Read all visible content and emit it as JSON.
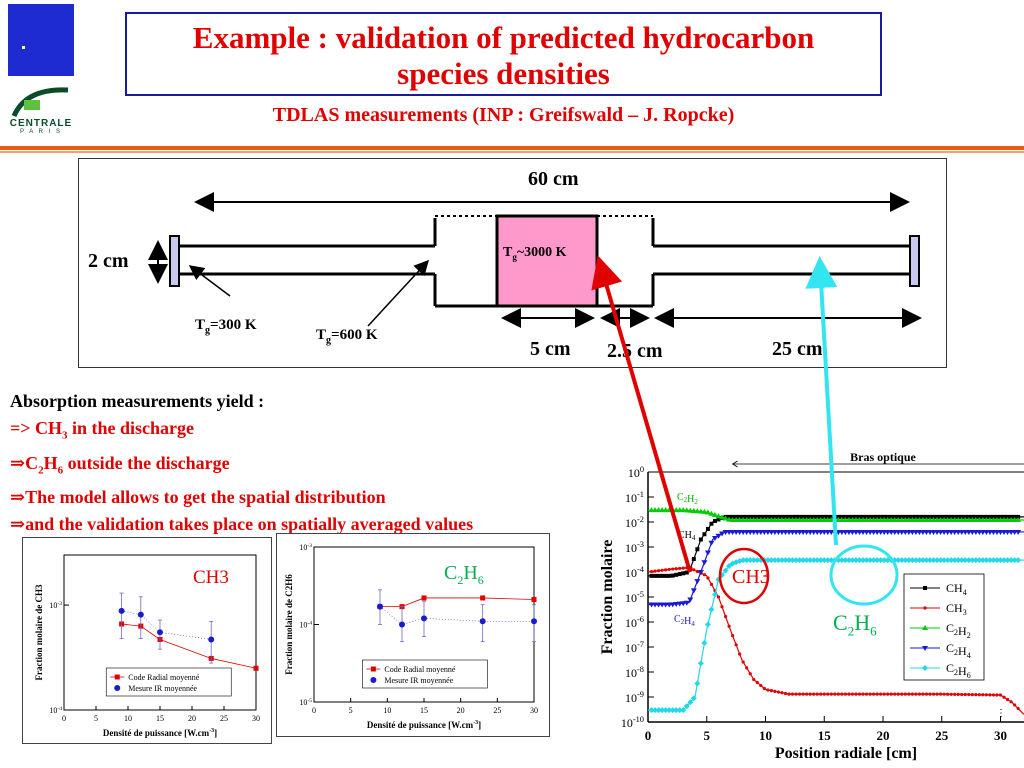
{
  "logo": {
    "text": "CENTRALE",
    "subtext": "P A R I S"
  },
  "title": {
    "line1": "Example : validation of predicted hydrocarbon",
    "line2": "species densities"
  },
  "subtitle": "TDLAS measurements (INP : Greifswald – J. Ropcke)",
  "reactor": {
    "total_length": "60 cm",
    "height": "2 cm",
    "discharge_label_pre": "T",
    "discharge_label_sub": "g",
    "discharge_label_post": "~3000 K",
    "tg300_pre": "T",
    "tg300_sub": "g",
    "tg300_post": "=300 K",
    "tg600_pre": "T",
    "tg600_sub": "g",
    "tg600_post": "=600 K",
    "dim_5": "5 cm",
    "dim_25a": "2.5 cm",
    "dim_25b": "25 cm",
    "colors": {
      "discharge": "#ff99cc",
      "window": "#c8c8f0",
      "red_arrow": "#e00000",
      "cyan_arrow": "#33e5f0"
    }
  },
  "absorption": {
    "heading": "Absorption measurements yield :",
    "l1_pre": "=> CH",
    "l1_sub": "3",
    "l1_post": " in the discharge",
    "l2_pre": "⇒C",
    "l2_sub1": "2",
    "l2_mid": "H",
    "l2_sub2": "6",
    "l2_post": " outside the discharge",
    "l3": "⇒The model allows to get the spatial distribution",
    "l4": "⇒and the validation takes place on spatially averaged values"
  },
  "chart_data": [
    {
      "type": "scatter",
      "title": "CH3",
      "xlabel": "Densité de puissance [W.cm-3]",
      "ylabel": "Fraction molaire de CH3",
      "xlim": [
        0,
        30
      ],
      "ylim": [
        0.0001,
        0.003
      ],
      "xticks": [
        "0",
        "5",
        "10",
        "15",
        "20",
        "25",
        "30"
      ],
      "yticks": [
        "10-4",
        "10-3"
      ],
      "log_y": true,
      "legend": "bottom-center",
      "series": [
        {
          "name": "Code Radial moyenné",
          "color": "#e00000",
          "marker": "square",
          "x": [
            9,
            12,
            15,
            23,
            30
          ],
          "y": [
            0.00066,
            0.00063,
            0.00047,
            0.00031,
            0.00025
          ]
        },
        {
          "name": "Mesure IR moyennée",
          "color": "#1a1ad0",
          "marker": "circle",
          "x": [
            9,
            12,
            15,
            23
          ],
          "y": [
            0.00088,
            0.00081,
            0.00055,
            0.00047
          ],
          "err_low": [
            0.00048,
            0.00048,
            0.00038,
            0.00028
          ],
          "err_high": [
            0.0013,
            0.0012,
            0.00072,
            0.0007
          ]
        }
      ]
    },
    {
      "type": "scatter",
      "title": "C2H6",
      "xlabel": "Densité de puissance [W.cm-3]",
      "ylabel": "Fraction molaire de C2H6",
      "xlim": [
        0,
        30
      ],
      "ylim": [
        1e-05,
        0.001
      ],
      "xticks": [
        "0",
        "5",
        "10",
        "15",
        "20",
        "25",
        "30"
      ],
      "yticks": [
        "10-5",
        "10-4",
        "10-3"
      ],
      "log_y": true,
      "legend": "bottom-center",
      "series": [
        {
          "name": "Code Radial moyenné",
          "color": "#e00000",
          "marker": "square",
          "x": [
            9,
            12,
            15,
            23,
            30
          ],
          "y": [
            0.00017,
            0.00017,
            0.00022,
            0.00022,
            0.00021
          ]
        },
        {
          "name": "Mesure IR moyennée",
          "color": "#1a1ad0",
          "marker": "circle",
          "x": [
            9,
            12,
            15,
            23,
            30
          ],
          "y": [
            0.00017,
            0.0001,
            0.00012,
            0.00011,
            0.00011
          ],
          "err_low": [
            0.0001,
            6e-05,
            7e-05,
            6e-05,
            6e-05
          ],
          "err_high": [
            0.00028,
            0.00017,
            0.0002,
            0.00018,
            0.00018
          ]
        }
      ]
    },
    {
      "type": "line",
      "xlabel": "Position radiale  [cm]",
      "ylabel": "Fraction molaire",
      "xlim": [
        0,
        32
      ],
      "ylim": [
        1e-10,
        1
      ],
      "xticks": [
        "0",
        "5",
        "10",
        "15",
        "20",
        "25",
        "30"
      ],
      "yticks": [
        "10-10",
        "10-9",
        "10-8",
        "10-7",
        "10-6",
        "10-5",
        "10-4",
        "10-3",
        "10-2",
        "10-1",
        "100"
      ],
      "log_y": true,
      "annotation_top": "Bras optique",
      "legend": "right",
      "series": [
        {
          "name": "CH4",
          "color": "#000000",
          "x": [
            0,
            2,
            3.5,
            4.5,
            5.5,
            6.5,
            7.5,
            10,
            15,
            20,
            25,
            30,
            32
          ],
          "y": [
            7e-05,
            7e-05,
            0.0001,
            0.002,
            0.01,
            0.016,
            0.016,
            0.016,
            0.016,
            0.016,
            0.016,
            0.016,
            0.016
          ]
        },
        {
          "name": "CH3",
          "color": "#e00000",
          "x": [
            0,
            2,
            3.5,
            5,
            6,
            7,
            8,
            9,
            10,
            12,
            15,
            20,
            25,
            30,
            31,
            32
          ],
          "y": [
            0.0001,
            0.00013,
            0.00015,
            7e-05,
            1e-05,
            5e-07,
            3e-08,
            5e-09,
            2e-09,
            1.3e-09,
            1.3e-09,
            1.3e-09,
            1.3e-09,
            1.2e-09,
            6e-10,
            2e-10
          ]
        },
        {
          "name": "C2H2",
          "color": "#00cc00",
          "x": [
            0,
            3,
            5,
            6,
            7,
            10,
            20,
            32
          ],
          "y": [
            0.03,
            0.03,
            0.025,
            0.017,
            0.012,
            0.012,
            0.012,
            0.012
          ]
        },
        {
          "name": "C2H4",
          "color": "#1a1ad0",
          "x": [
            0,
            2,
            3.5,
            4.5,
            5.5,
            6.5,
            7.5,
            10,
            20,
            32
          ],
          "y": [
            5e-06,
            5e-06,
            6e-06,
            0.0001,
            0.002,
            0.004,
            0.004,
            0.004,
            0.004,
            0.004
          ]
        },
        {
          "name": "C2H6",
          "color": "#22d8e8",
          "x": [
            0,
            3,
            4,
            5,
            6,
            7,
            8,
            10,
            20,
            32
          ],
          "y": [
            3e-10,
            3e-10,
            1e-09,
            5e-07,
            5e-05,
            0.0002,
            0.0003,
            0.0003,
            0.0003,
            0.0003
          ]
        }
      ]
    }
  ],
  "annotations": {
    "p1_title": "CH3",
    "p2_title_pre": "C",
    "p2_sub1": "2",
    "p2_mid": "H",
    "p2_sub2": "6",
    "big_ch3": "CH3",
    "big_c2h6_pre": "C",
    "big_c2h6_sub1": "2",
    "big_c2h6_mid": "H",
    "big_c2h6_sub2": "6",
    "lbl_c2h2": "C2H2",
    "lbl_ch4": "CH4",
    "lbl_c2h4": "C2H4",
    "dots": "⋮"
  }
}
